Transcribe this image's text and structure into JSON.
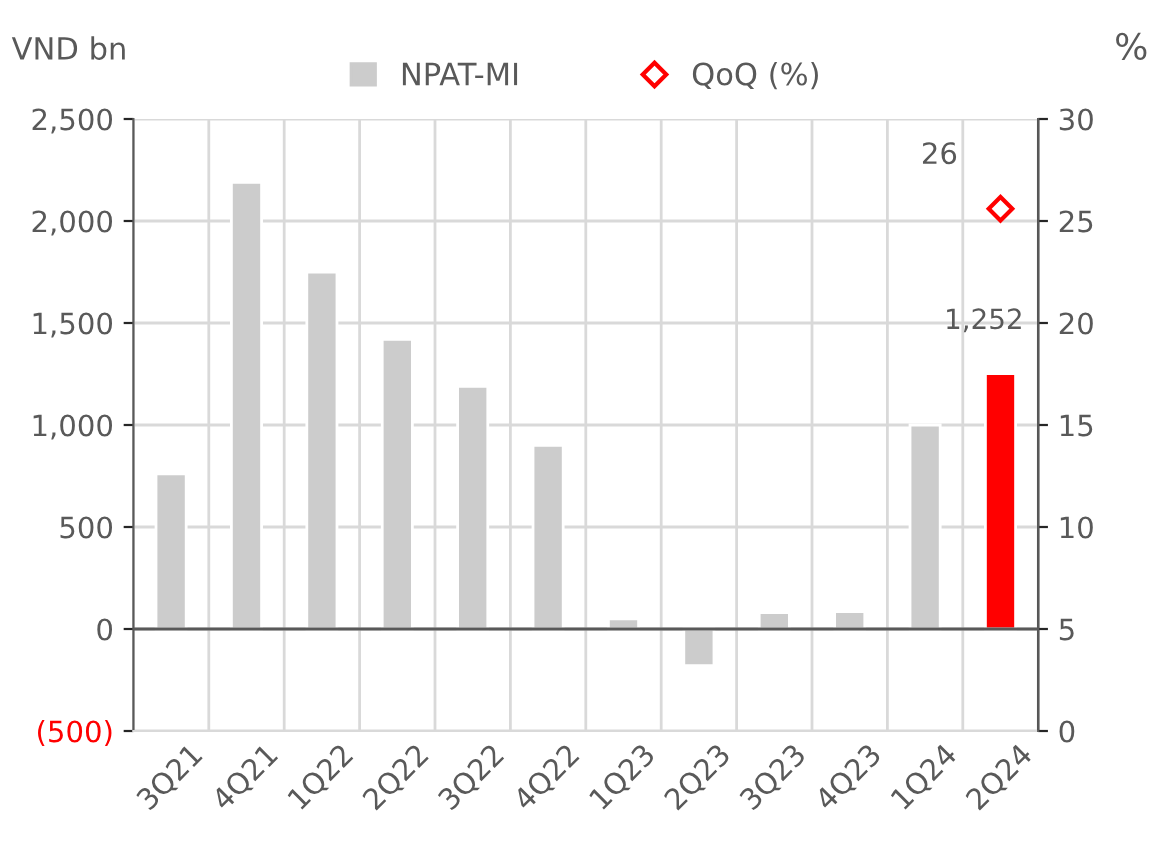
{
  "chart_data": {
    "type": "bar",
    "ylabel": "VND bn",
    "y2label": "%",
    "categories": [
      "3Q21",
      "4Q21",
      "1Q22",
      "2Q22",
      "3Q22",
      "4Q22",
      "1Q23",
      "2Q23",
      "3Q23",
      "4Q23",
      "1Q24",
      "2Q24"
    ],
    "series": [
      {
        "name": "NPAT-MI",
        "color": "#cccccc",
        "colors": [
          "#cccccc",
          "#cccccc",
          "#cccccc",
          "#cccccc",
          "#cccccc",
          "#cccccc",
          "#cccccc",
          "#cccccc",
          "#cccccc",
          "#cccccc",
          "#cccccc",
          "#ff0000"
        ],
        "values": [
          760,
          2190,
          1750,
          1420,
          1190,
          900,
          50,
          -180,
          80,
          85,
          1000,
          1252
        ],
        "value_labels": [
          null,
          null,
          null,
          null,
          null,
          null,
          null,
          null,
          null,
          null,
          null,
          "1,252"
        ]
      },
      {
        "name": "QoQ (%)",
        "type": "scatter",
        "axis": "y2",
        "color": "#ff0000",
        "marker": "diamond",
        "values": [
          null,
          null,
          null,
          null,
          null,
          null,
          null,
          null,
          null,
          null,
          null,
          25.6
        ],
        "value_labels": [
          null,
          null,
          null,
          null,
          null,
          null,
          null,
          null,
          null,
          null,
          null,
          "26"
        ]
      }
    ],
    "ylim": [
      -500,
      2500
    ],
    "yticks": [
      {
        "value": -500,
        "label": "(500)"
      },
      0,
      500,
      {
        "value": 1000,
        "label": "1,000"
      },
      {
        "value": 1500,
        "label": "1,500"
      },
      {
        "value": 2000,
        "label": "2,000"
      },
      {
        "value": 2500,
        "label": "2,500"
      }
    ],
    "y2lim": [
      0,
      30
    ],
    "y2ticks": [
      0,
      5,
      10,
      15,
      20,
      25,
      30
    ],
    "grid": true,
    "legend": "top"
  }
}
